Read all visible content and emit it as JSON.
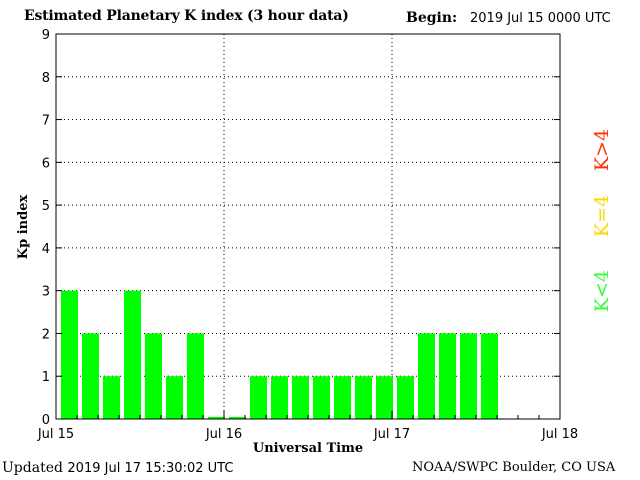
{
  "header": {
    "title": "Estimated Planetary K index (3 hour data)",
    "begin_label": "Begin:",
    "begin_value": "2019 Jul 15 0000 UTC"
  },
  "footer": {
    "updated_label": "Updated",
    "updated_value": "2019 Jul 17 15:30:02 UTC",
    "source": "NOAA/SWPC Boulder, CO USA"
  },
  "legend": [
    {
      "label": "K>4",
      "color": "#ff3300"
    },
    {
      "label": "K=4",
      "color": "#ffd700"
    },
    {
      "label": "K<4",
      "color": "#33ff33"
    }
  ],
  "chart_data": {
    "type": "bar",
    "title": "Estimated Planetary K index (3 hour data)",
    "xlabel": "Universal Time",
    "ylabel": "Kp index",
    "ylim": [
      0,
      9
    ],
    "yticks": [
      "0",
      "1",
      "2",
      "3",
      "4",
      "5",
      "6",
      "7",
      "8",
      "9"
    ],
    "xticks": [
      "Jul 15",
      "Jul 16",
      "Jul 17",
      "Jul 18"
    ],
    "bar_interval_hours": 3,
    "values": [
      3,
      2,
      1,
      3,
      2,
      1,
      2,
      0.05,
      0.05,
      1,
      1,
      1,
      1,
      1,
      1,
      1,
      1,
      2,
      2,
      2,
      2
    ],
    "bar_color": "#00ff00",
    "grid": "dotted at day boundaries and integer Kp levels"
  }
}
